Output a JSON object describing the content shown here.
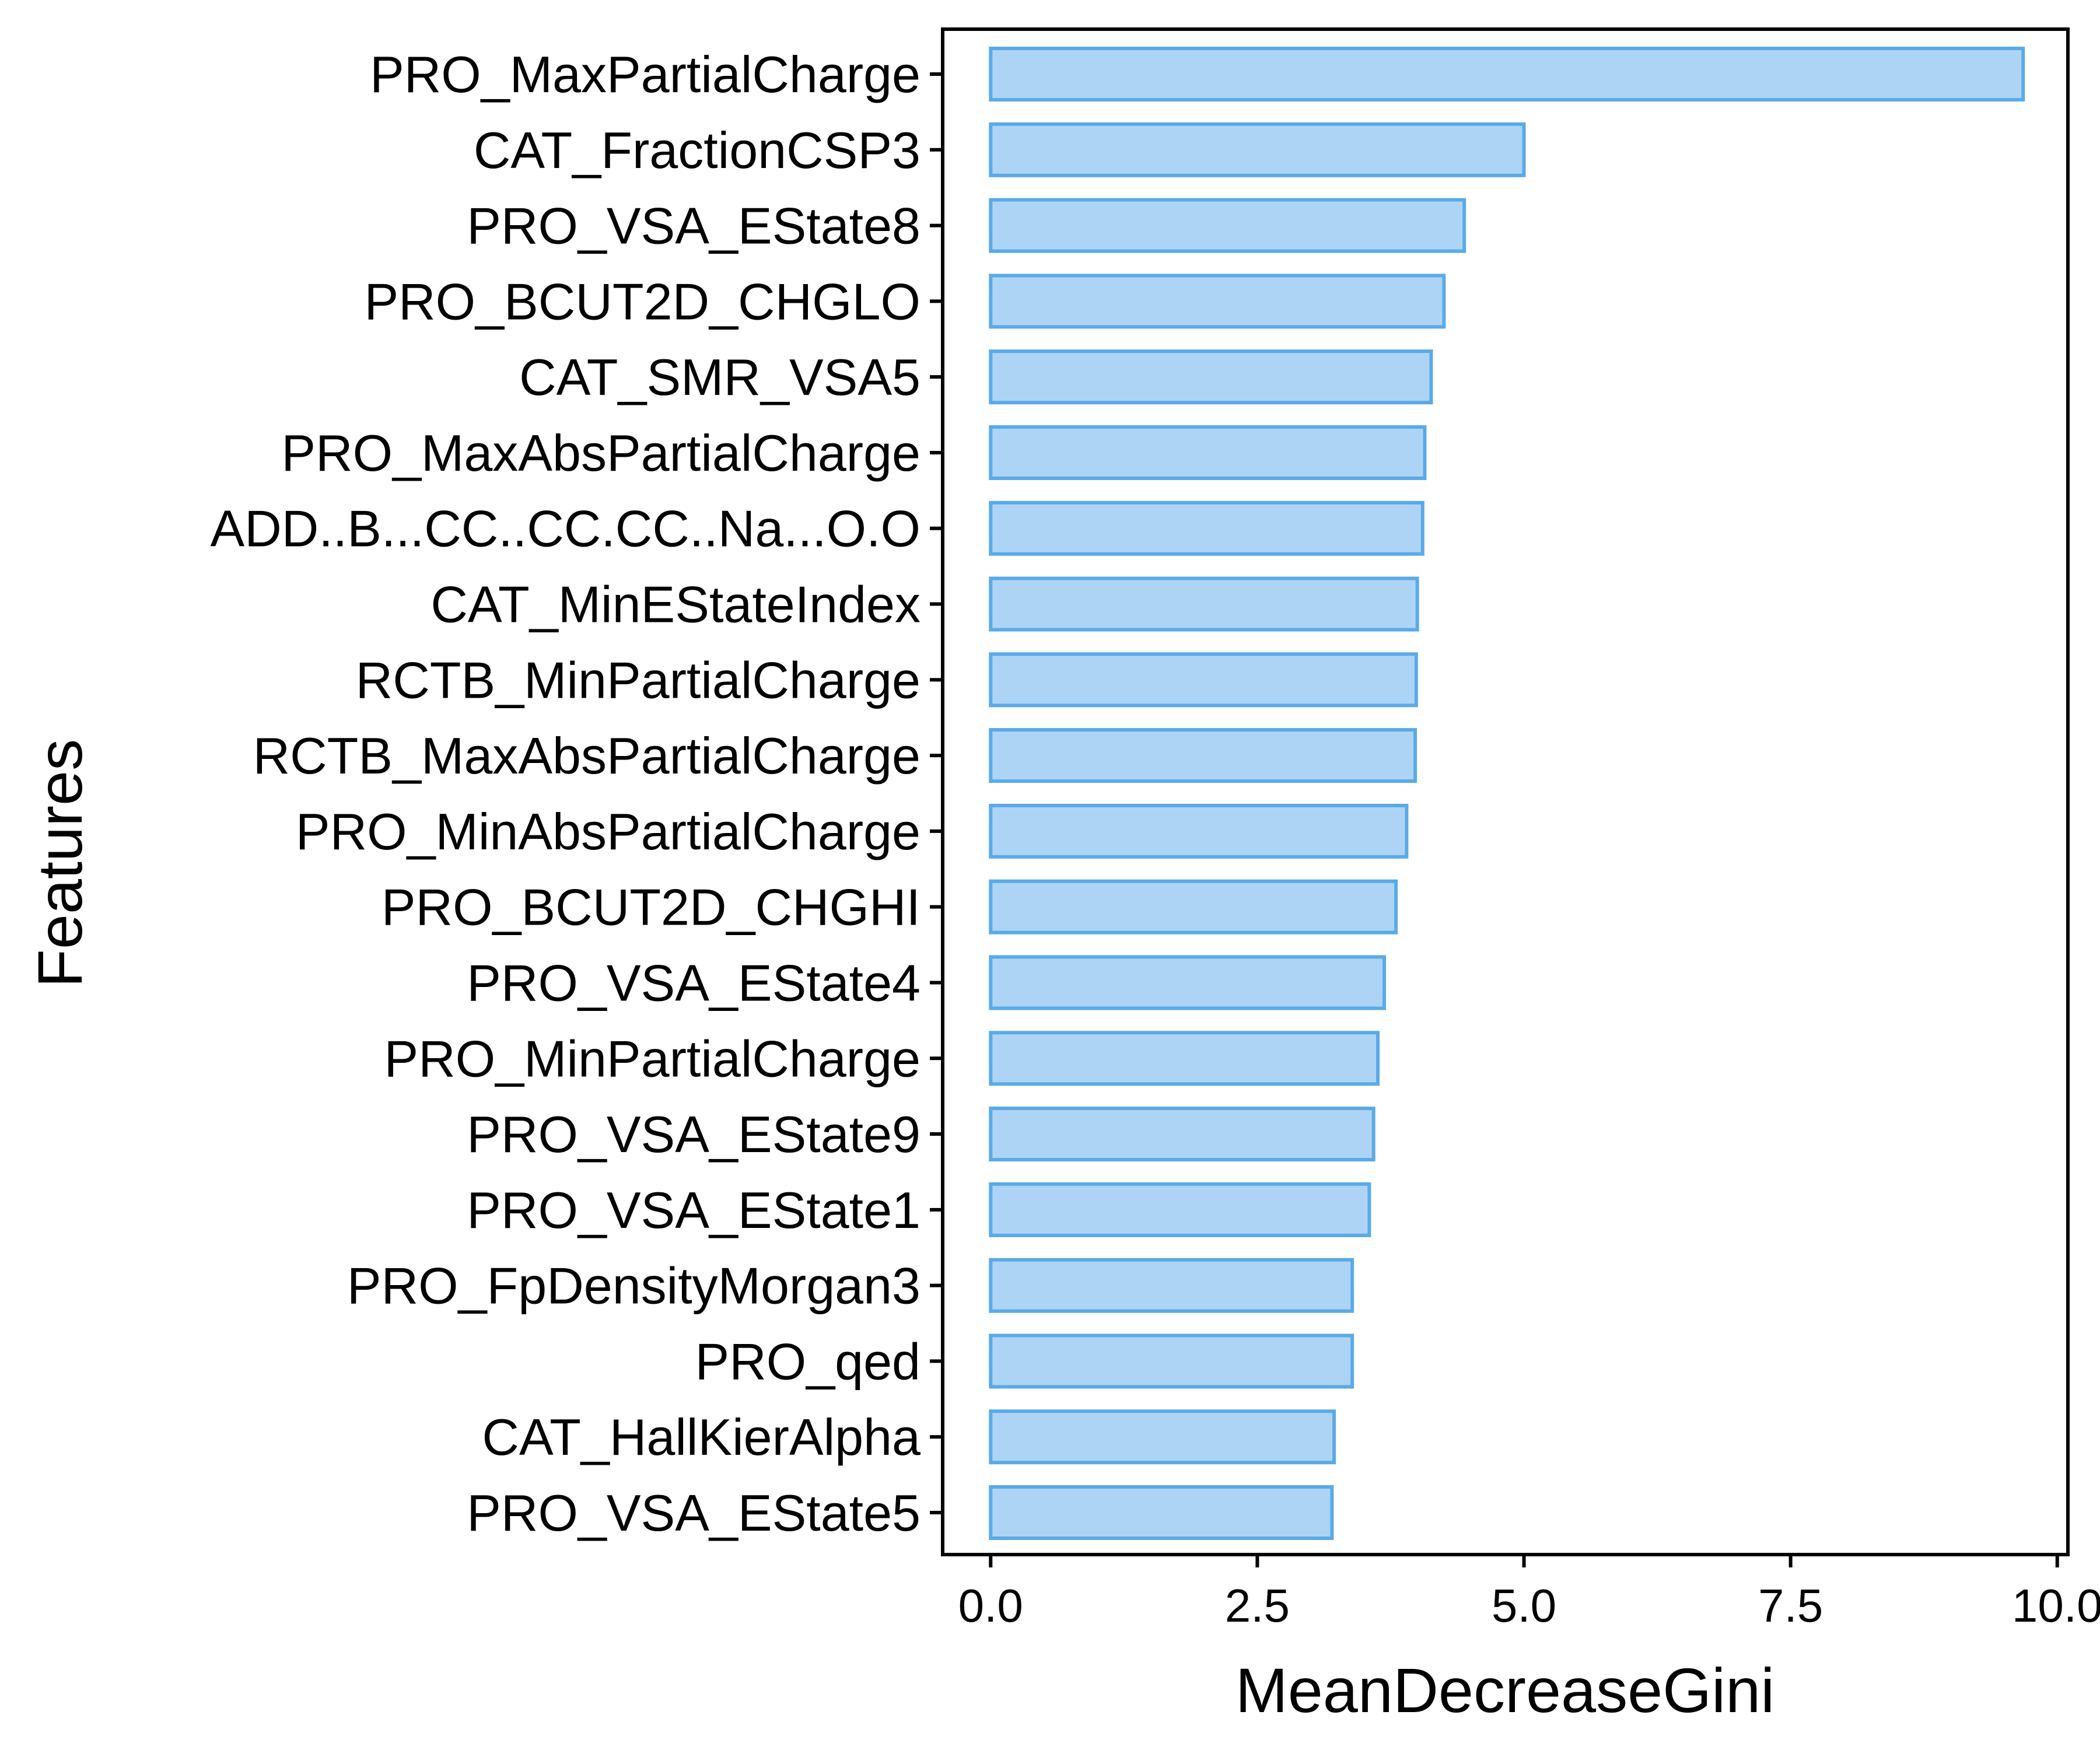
{
  "chart_data": {
    "type": "bar",
    "orientation": "horizontal",
    "title": "",
    "xlabel": "MeanDecreaseGini",
    "ylabel": "Features",
    "xlim": [
      -0.45,
      10.1
    ],
    "xticks": [
      0,
      2.5,
      5,
      7.5,
      10
    ],
    "xtick_labels": [
      "0.0",
      "2.5",
      "5.0",
      "7.5",
      "10.0"
    ],
    "grid": false,
    "bar_fill": "#aed4f5",
    "bar_stroke": "#5aaae8",
    "categories": [
      "PRO_MaxPartialCharge",
      "CAT_FractionCSP3",
      "PRO_VSA_EState8",
      "PRO_BCUT2D_CHGLO",
      "CAT_SMR_VSA5",
      "PRO_MaxAbsPartialCharge",
      "ADD..B...CC..CC.CC..Na...O.O",
      "CAT_MinEStateIndex",
      "RCTB_MinPartialCharge",
      "RCTB_MaxAbsPartialCharge",
      "PRO_MinAbsPartialCharge",
      "PRO_BCUT2D_CHGHI",
      "PRO_VSA_EState4",
      "PRO_MinPartialCharge",
      "PRO_VSA_EState9",
      "PRO_VSA_EState1",
      "PRO_FpDensityMorgan3",
      "PRO_qed",
      "CAT_HallKierAlpha",
      "PRO_VSA_EState5"
    ],
    "values": [
      9.68,
      5.0,
      4.44,
      4.25,
      4.13,
      4.07,
      4.05,
      4.0,
      3.99,
      3.98,
      3.9,
      3.8,
      3.69,
      3.63,
      3.59,
      3.55,
      3.39,
      3.39,
      3.22,
      3.2
    ]
  }
}
